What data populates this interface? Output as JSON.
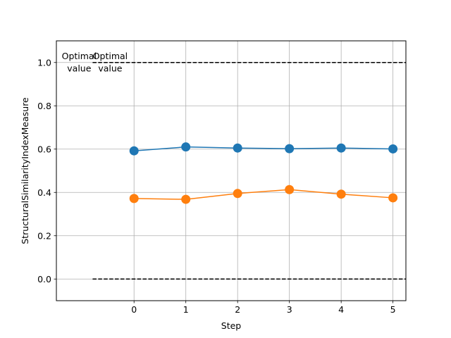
{
  "chart_data": {
    "type": "line",
    "xlabel": "Step",
    "ylabel": "StructuralSimilarityIndexMeasure",
    "x": [
      0,
      1,
      2,
      3,
      4,
      5
    ],
    "xlim": [
      -1.5,
      5.25
    ],
    "ylim": [
      -0.1,
      1.1
    ],
    "x_ticks": [
      "0",
      "1",
      "2",
      "3",
      "4",
      "5"
    ],
    "y_ticks": [
      "0.0",
      "0.2",
      "0.4",
      "0.6",
      "0.8",
      "1.0"
    ],
    "grid": true,
    "series": [
      {
        "values": [
          0.592,
          0.61,
          0.605,
          0.602,
          0.605,
          0.601
        ],
        "color": "#1f77b4"
      },
      {
        "values": [
          0.372,
          0.368,
          0.395,
          0.413,
          0.392,
          0.375
        ],
        "color": "#ff7f0e"
      }
    ],
    "reference_lines": [
      {
        "y": 1.0,
        "color": "#000000",
        "style": "dashed"
      },
      {
        "y": 0.0,
        "color": "#000000",
        "style": "dashed"
      }
    ],
    "annotations": [
      {
        "line1": "Optimal",
        "line2": "value",
        "x": -1.4,
        "y": 1.0
      },
      {
        "line1": "Optimal",
        "line2": "value",
        "x": -0.8,
        "y": 1.0
      }
    ]
  }
}
